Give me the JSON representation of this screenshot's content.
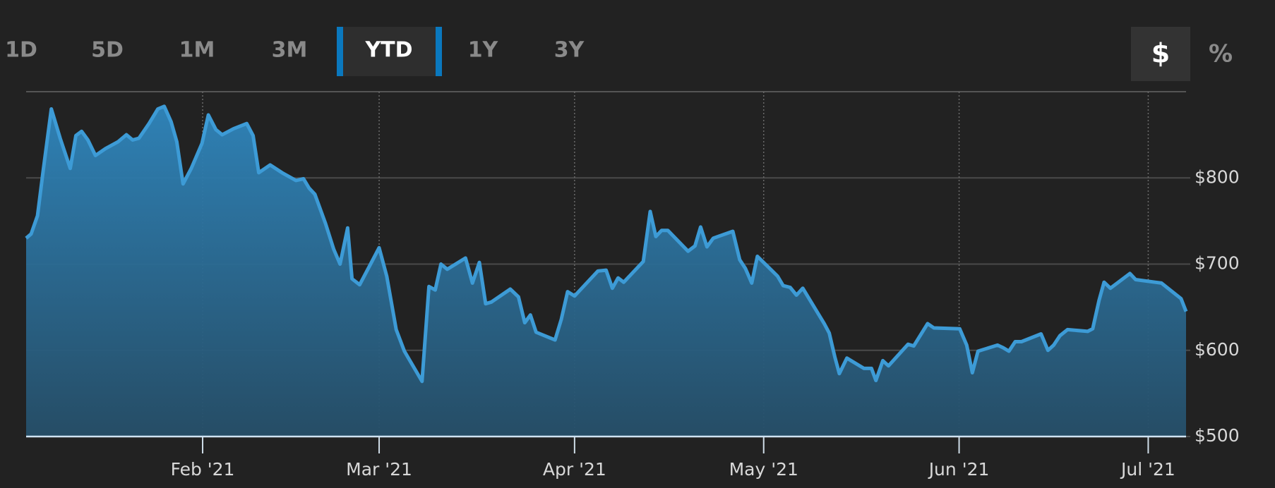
{
  "ranges": [
    "1D",
    "5D",
    "1M",
    "3M",
    "YTD",
    "1Y",
    "3Y"
  ],
  "selected_range": "YTD",
  "units": [
    "$",
    "%"
  ],
  "selected_unit": "$",
  "chart_data": {
    "type": "area",
    "color": "#3d9bd6",
    "x": [
      4.0,
      4.8,
      5.8,
      6.7,
      8.0,
      9.4,
      11.0,
      11.9,
      12.8,
      13.8,
      15.0,
      16.6,
      18.6,
      19.9,
      20.9,
      21.9,
      23.5,
      24.9,
      25.9,
      27.0,
      27.9,
      28.9,
      30.2,
      31.9,
      32.9,
      34.1,
      35.1,
      36.9,
      39.0,
      40.0,
      40.9,
      42.7,
      44.6,
      46.8,
      48.0,
      48.9,
      49.8,
      51.5,
      52.8,
      53.8,
      55.0,
      55.7,
      56.9,
      58.5,
      60.0,
      61.2,
      62.7,
      64.0,
      66.8,
      67.9,
      68.9,
      69.8,
      70.8,
      73.7,
      74.8,
      75.9,
      76.9,
      77.8,
      80.8,
      82.1,
      83.1,
      84.0,
      84.9,
      87.9,
      88.9,
      89.9,
      91.0,
      94.7,
      96.0,
      97.0,
      97.9,
      98.8,
      101.9,
      103.0,
      103.9,
      104.8,
      105.8,
      109.0,
      110.1,
      111.0,
      112.0,
      113.0,
      116.1,
      117.2,
      118.1,
      119.1,
      120.0,
      123.2,
      124.1,
      125.2,
      126.2,
      127.2,
      130.6,
      131.4,
      132.3,
      133.0,
      134.2,
      136.9,
      138.1,
      138.8,
      139.9,
      140.8,
      143.9,
      144.8,
      147.0,
      148.0,
      152.1,
      153.2,
      154.1,
      155.0,
      158.1,
      159.0,
      159.9,
      160.9,
      161.9,
      165.0,
      166.1,
      167.0,
      168.0,
      169.2,
      172.4,
      173.2,
      174.2,
      175.0,
      176.0,
      179.1,
      180.0,
      183.1,
      184.1,
      187.2,
      188.0
    ],
    "values": [
      730,
      735,
      756,
      808,
      880,
      846,
      811,
      849,
      854,
      844,
      826,
      834,
      842,
      850,
      844,
      846,
      863,
      880,
      883,
      865,
      842,
      793,
      811,
      840,
      873,
      856,
      850,
      857,
      863,
      849,
      806,
      815,
      806,
      797,
      799,
      788,
      781,
      747,
      717,
      700,
      742,
      683,
      676,
      698,
      719,
      686,
      624,
      599,
      564,
      674,
      670,
      700,
      694,
      707,
      678,
      702,
      654,
      656,
      671,
      662,
      632,
      641,
      621,
      612,
      636,
      668,
      663,
      692,
      693,
      672,
      684,
      679,
      703,
      761,
      732,
      739,
      739,
      715,
      721,
      743,
      720,
      730,
      738,
      705,
      695,
      678,
      709,
      686,
      675,
      673,
      664,
      672,
      631,
      620,
      592,
      573,
      591,
      579,
      579,
      565,
      588,
      582,
      607,
      605,
      631,
      626,
      625,
      606,
      574,
      599,
      606,
      603,
      599,
      610,
      610,
      619,
      600,
      606,
      617,
      624,
      622,
      625,
      658,
      679,
      672,
      689,
      682,
      679,
      678,
      660,
      645
    ],
    "xlim": [
      4,
      188
    ],
    "xticks": [
      {
        "value": 32,
        "label": "Feb '21"
      },
      {
        "value": 60,
        "label": "Mar '21"
      },
      {
        "value": 91,
        "label": "Apr '21"
      },
      {
        "value": 121,
        "label": "May '21"
      },
      {
        "value": 152,
        "label": "Jun '21"
      },
      {
        "value": 182,
        "label": "Jul '21"
      }
    ],
    "ylim": [
      500,
      900
    ],
    "yticks": [
      {
        "value": 500,
        "label": "$500"
      },
      {
        "value": 600,
        "label": "$600"
      },
      {
        "value": 700,
        "label": "$700"
      },
      {
        "value": 800,
        "label": "$800"
      }
    ],
    "grid": true
  }
}
